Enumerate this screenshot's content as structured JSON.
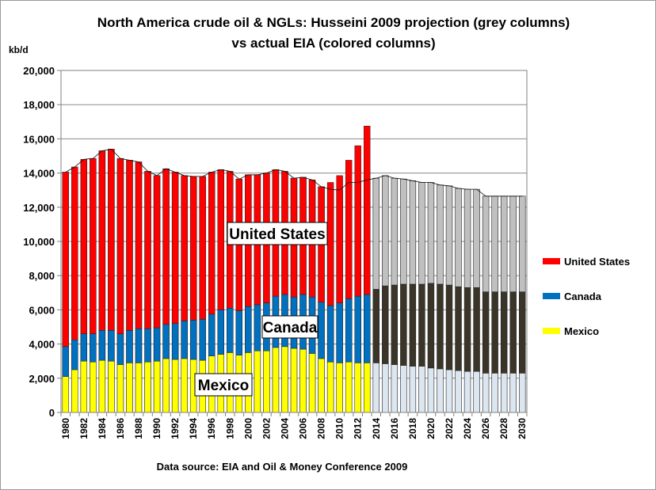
{
  "chart_data": {
    "type": "bar",
    "title_line1": "North America crude oil & NGLs: Husseini 2009 projection (grey columns)",
    "title_line2": "vs actual EIA (colored columns)",
    "ylabel": "kb/d",
    "ylim": [
      0,
      20000
    ],
    "yticks": [
      "0",
      "2,000",
      "4,000",
      "6,000",
      "8,000",
      "10,000",
      "12,000",
      "14,000",
      "16,000",
      "18,000",
      "20,000"
    ],
    "grid": true,
    "legend_position": "right",
    "source": "Data source: EIA and Oil & Money Conference 2009",
    "categories": [
      "1980",
      "1981",
      "1982",
      "1983",
      "1984",
      "1985",
      "1986",
      "1987",
      "1988",
      "1989",
      "1990",
      "1991",
      "1992",
      "1993",
      "1994",
      "1995",
      "1996",
      "1997",
      "1998",
      "1999",
      "2000",
      "2001",
      "2002",
      "2003",
      "2004",
      "2005",
      "2006",
      "2007",
      "2008",
      "2009",
      "2010",
      "2011",
      "2012",
      "2013",
      "2014",
      "2015",
      "2016",
      "2017",
      "2018",
      "2019",
      "2020",
      "2021",
      "2022",
      "2023",
      "2024",
      "2025",
      "2026",
      "2027",
      "2028",
      "2029",
      "2030"
    ],
    "tick_labels": [
      "1980",
      "1982",
      "1984",
      "1986",
      "1988",
      "1990",
      "1992",
      "1994",
      "1996",
      "1998",
      "2000",
      "2002",
      "2004",
      "2006",
      "2008",
      "2010",
      "2012",
      "2014",
      "2016",
      "2018",
      "2020",
      "2022",
      "2024",
      "2026",
      "2028",
      "2030"
    ],
    "actual_colors": {
      "Mexico": "#ffff00",
      "Canada": "#0070c0",
      "United States": "#ff0000"
    },
    "projection_colors": {
      "Mexico": "#dce6f1",
      "Canada": "#3a3528",
      "United States": "#c0c0c0"
    },
    "actual_series": [
      {
        "name": "Mexico",
        "values": [
          2100,
          2500,
          3000,
          2950,
          3050,
          3000,
          2800,
          2900,
          2900,
          2950,
          3000,
          3150,
          3100,
          3150,
          3100,
          3050,
          3300,
          3400,
          3500,
          3350,
          3500,
          3600,
          3600,
          3800,
          3850,
          3750,
          3700,
          3450,
          3150,
          2950,
          2900,
          2950,
          2900,
          2900
        ]
      },
      {
        "name": "Canada",
        "values": [
          1750,
          1750,
          1600,
          1650,
          1750,
          1800,
          1800,
          1900,
          2000,
          1950,
          1950,
          2000,
          2100,
          2200,
          2300,
          2400,
          2450,
          2600,
          2600,
          2600,
          2700,
          2700,
          2800,
          3000,
          3050,
          3000,
          3200,
          3300,
          3300,
          3300,
          3500,
          3700,
          3900,
          4000
        ]
      },
      {
        "name": "United States",
        "values": [
          10200,
          10100,
          10200,
          10250,
          10500,
          10600,
          10250,
          9950,
          9750,
          9200,
          8900,
          9100,
          8850,
          8500,
          8400,
          8350,
          8300,
          8200,
          8000,
          7700,
          7700,
          7600,
          7600,
          7400,
          7200,
          6950,
          6850,
          6850,
          6750,
          7200,
          7450,
          8100,
          8800,
          9850
        ]
      }
    ],
    "projection_series": [
      {
        "name": "Mexico",
        "values": [
          2100,
          2500,
          3000,
          2950,
          3050,
          3000,
          2800,
          2900,
          2900,
          2950,
          3000,
          3150,
          3100,
          3150,
          3100,
          3050,
          3300,
          3400,
          3500,
          3350,
          3500,
          3600,
          3600,
          3800,
          3850,
          3750,
          3700,
          3450,
          3150,
          2950,
          2900,
          3050,
          2950,
          2950,
          2900,
          2850,
          2800,
          2750,
          2700,
          2700,
          2600,
          2550,
          2500,
          2450,
          2400,
          2400,
          2300,
          2300,
          2300,
          2300,
          2300
        ]
      },
      {
        "name": "Canada",
        "values": [
          1750,
          1750,
          1600,
          1650,
          1750,
          1800,
          1800,
          1900,
          2000,
          1950,
          1950,
          2000,
          2100,
          2200,
          2300,
          2400,
          2450,
          2600,
          2600,
          2600,
          2700,
          2700,
          2800,
          3000,
          3050,
          3000,
          3200,
          3300,
          3300,
          3300,
          3400,
          3700,
          3750,
          3850,
          4300,
          4550,
          4650,
          4750,
          4800,
          4800,
          4950,
          4950,
          4950,
          4900,
          4900,
          4900,
          4750,
          4750,
          4750,
          4750,
          4750
        ]
      },
      {
        "name": "United States",
        "values": [
          10200,
          10100,
          10200,
          10250,
          10500,
          10600,
          10250,
          9950,
          9750,
          9200,
          8900,
          9100,
          8850,
          8500,
          8400,
          8350,
          8300,
          8200,
          8000,
          7700,
          7700,
          7600,
          7600,
          7400,
          7200,
          6950,
          6850,
          6850,
          6750,
          6800,
          6700,
          6700,
          6750,
          6800,
          6500,
          6450,
          6250,
          6150,
          6050,
          5950,
          5900,
          5800,
          5800,
          5750,
          5750,
          5750,
          5600,
          5600,
          5600,
          5600,
          5600
        ]
      }
    ],
    "legend": [
      "United States",
      "Canada",
      "Mexico"
    ],
    "annotations": [
      "United States",
      "Canada",
      "Mexico"
    ]
  }
}
